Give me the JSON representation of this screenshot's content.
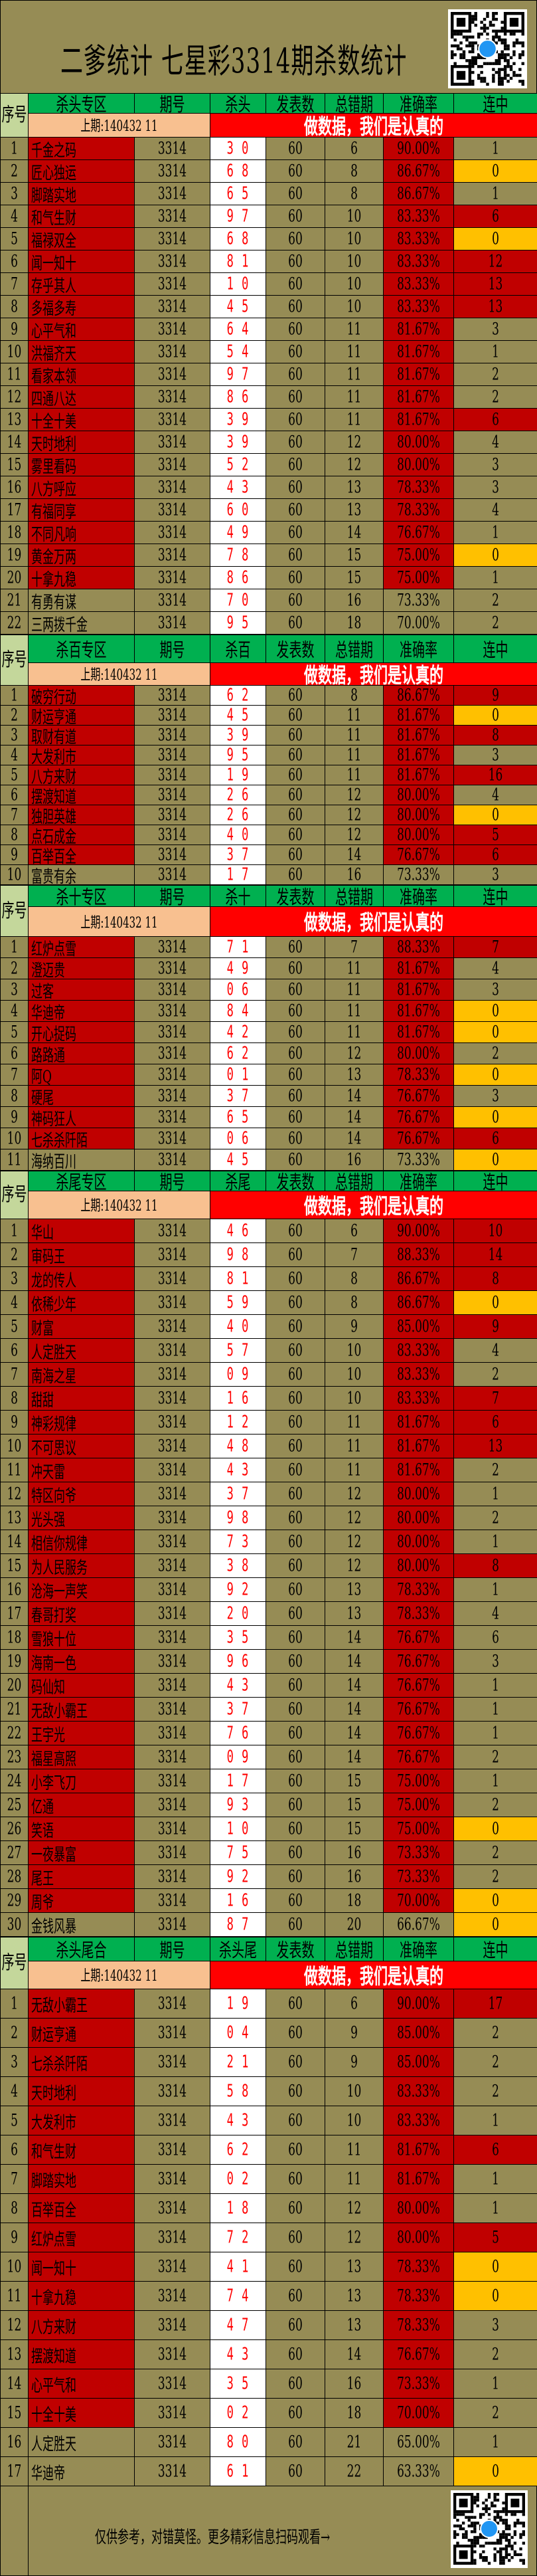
{
  "title": "二爹统计  七星彩3314期杀数统计",
  "common": {
    "seq_label": "序号",
    "period_label": "期号",
    "published_label": "发表数",
    "errors_label": "总错期",
    "accuracy_label": "准确率",
    "streak_label": "连中",
    "last_draw": "上期:140432 11",
    "slogan": "做数据，我们是认真的"
  },
  "colors": {
    "background": "#968c55",
    "header": "#00b050",
    "highlight": "#c00000",
    "streak_zero": "#ffc000",
    "slogan": "#ff0000",
    "last_draw": "#f8c090"
  },
  "row_columns": [
    "seq",
    "name",
    "period",
    "kill",
    "published",
    "errors",
    "accuracy",
    "streak",
    "highlight",
    "streak_color"
  ],
  "sections": [
    {
      "zone": "杀头专区",
      "kill_label": "杀头",
      "rows": [
        [
          "1",
          "千金之码",
          "3314",
          "3 0",
          "60",
          "6",
          "90.00%",
          "1",
          true,
          ""
        ],
        [
          "2",
          "匠心独运",
          "3314",
          "6 8",
          "60",
          "8",
          "86.67%",
          "0",
          true,
          "y"
        ],
        [
          "3",
          "脚踏实地",
          "3314",
          "6 5",
          "60",
          "8",
          "86.67%",
          "1",
          true,
          ""
        ],
        [
          "4",
          "和气生财",
          "3314",
          "9 7",
          "60",
          "10",
          "83.33%",
          "6",
          true,
          "r"
        ],
        [
          "5",
          "福禄双全",
          "3314",
          "6 8",
          "60",
          "10",
          "83.33%",
          "0",
          true,
          "y"
        ],
        [
          "6",
          "闻一知十",
          "3314",
          "8 1",
          "60",
          "10",
          "83.33%",
          "12",
          true,
          "r"
        ],
        [
          "7",
          "存乎其人",
          "3314",
          "1 0",
          "60",
          "10",
          "83.33%",
          "13",
          true,
          "r"
        ],
        [
          "8",
          "多福多寿",
          "3314",
          "4 5",
          "60",
          "10",
          "83.33%",
          "13",
          true,
          "r"
        ],
        [
          "9",
          "心平气和",
          "3314",
          "6 4",
          "60",
          "11",
          "81.67%",
          "3",
          true,
          ""
        ],
        [
          "10",
          "洪福齐天",
          "3314",
          "5 4",
          "60",
          "11",
          "81.67%",
          "1",
          true,
          ""
        ],
        [
          "11",
          "看家本领",
          "3314",
          "9 7",
          "60",
          "11",
          "81.67%",
          "2",
          true,
          ""
        ],
        [
          "12",
          "四通八达",
          "3314",
          "8 6",
          "60",
          "11",
          "81.67%",
          "2",
          true,
          ""
        ],
        [
          "13",
          "十全十美",
          "3314",
          "3 9",
          "60",
          "11",
          "81.67%",
          "6",
          true,
          "r"
        ],
        [
          "14",
          "天时地利",
          "3314",
          "3 9",
          "60",
          "12",
          "80.00%",
          "4",
          true,
          ""
        ],
        [
          "15",
          "雾里看码",
          "3314",
          "5 2",
          "60",
          "12",
          "80.00%",
          "3",
          true,
          ""
        ],
        [
          "16",
          "八方呼应",
          "3314",
          "4 3",
          "60",
          "13",
          "78.33%",
          "3",
          true,
          ""
        ],
        [
          "17",
          "有福同享",
          "3314",
          "6 0",
          "60",
          "13",
          "78.33%",
          "4",
          true,
          ""
        ],
        [
          "18",
          "不同凡响",
          "3314",
          "4 9",
          "60",
          "14",
          "76.67%",
          "1",
          true,
          ""
        ],
        [
          "19",
          "黄金万两",
          "3314",
          "7 8",
          "60",
          "15",
          "75.00%",
          "0",
          true,
          "y"
        ],
        [
          "20",
          "十拿九稳",
          "3314",
          "8 6",
          "60",
          "15",
          "75.00%",
          "1",
          true,
          ""
        ],
        [
          "21",
          "有勇有谋",
          "3314",
          "7 0",
          "60",
          "16",
          "73.33%",
          "2",
          false,
          ""
        ],
        [
          "22",
          "三两拨千金",
          "3314",
          "9 5",
          "60",
          "18",
          "70.00%",
          "2",
          false,
          ""
        ]
      ]
    },
    {
      "zone": "杀百专区",
      "kill_label": "杀百",
      "rows": [
        [
          "1",
          "破穷行动",
          "3314",
          "6 2",
          "60",
          "8",
          "86.67%",
          "9",
          true,
          "r"
        ],
        [
          "2",
          "财运亨通",
          "3314",
          "4 5",
          "60",
          "11",
          "81.67%",
          "0",
          true,
          "y"
        ],
        [
          "3",
          "取财有道",
          "3314",
          "3 9",
          "60",
          "11",
          "81.67%",
          "8",
          true,
          "r"
        ],
        [
          "4",
          "大发利市",
          "3314",
          "9 5",
          "60",
          "11",
          "81.67%",
          "3",
          true,
          ""
        ],
        [
          "5",
          "八方来财",
          "3314",
          "1 9",
          "60",
          "11",
          "81.67%",
          "16",
          true,
          "r"
        ],
        [
          "6",
          "摆渡知道",
          "3314",
          "2 6",
          "60",
          "12",
          "80.00%",
          "4",
          true,
          ""
        ],
        [
          "7",
          "独胆英雄",
          "3314",
          "2 6",
          "60",
          "12",
          "80.00%",
          "0",
          true,
          "y"
        ],
        [
          "8",
          "点石成金",
          "3314",
          "4 0",
          "60",
          "12",
          "80.00%",
          "5",
          true,
          "r"
        ],
        [
          "9",
          "百举百全",
          "3314",
          "3 7",
          "60",
          "14",
          "76.67%",
          "6",
          true,
          "r"
        ],
        [
          "10",
          "富贵有余",
          "3314",
          "1 7",
          "60",
          "16",
          "73.33%",
          "3",
          false,
          ""
        ]
      ]
    },
    {
      "zone": "杀十专区",
      "kill_label": "杀十",
      "rows": [
        [
          "1",
          "红炉点雪",
          "3314",
          "7 1",
          "60",
          "7",
          "88.33%",
          "7",
          true,
          "r"
        ],
        [
          "2",
          "澄迈贵",
          "3314",
          "4 9",
          "60",
          "11",
          "81.67%",
          "4",
          true,
          ""
        ],
        [
          "3",
          "过客",
          "3314",
          "0 6",
          "60",
          "11",
          "81.67%",
          "3",
          true,
          ""
        ],
        [
          "4",
          "华迪帝",
          "3314",
          "8 4",
          "60",
          "11",
          "81.67%",
          "0",
          true,
          "y"
        ],
        [
          "5",
          "开心捉码",
          "3314",
          "4 2",
          "60",
          "11",
          "81.67%",
          "0",
          true,
          "y"
        ],
        [
          "6",
          "路路通",
          "3314",
          "6 2",
          "60",
          "12",
          "80.00%",
          "2",
          true,
          ""
        ],
        [
          "7",
          "阿Q",
          "3314",
          "0 1",
          "60",
          "13",
          "78.33%",
          "0",
          true,
          "y"
        ],
        [
          "8",
          "硬尾",
          "3314",
          "3 7",
          "60",
          "14",
          "76.67%",
          "3",
          true,
          ""
        ],
        [
          "9",
          "神码狂人",
          "3314",
          "6 5",
          "60",
          "14",
          "76.67%",
          "0",
          true,
          "y"
        ],
        [
          "10",
          "七杀杀阡陌",
          "3314",
          "0 6",
          "60",
          "14",
          "76.67%",
          "6",
          true,
          "r"
        ],
        [
          "11",
          "海纳百川",
          "3314",
          "4 5",
          "60",
          "16",
          "73.33%",
          "0",
          false,
          "y"
        ]
      ]
    },
    {
      "zone": "杀尾专区",
      "kill_label": "杀尾",
      "rows": [
        [
          "1",
          "华山",
          "3314",
          "4 6",
          "60",
          "6",
          "90.00%",
          "10",
          true,
          "r"
        ],
        [
          "2",
          "审码王",
          "3314",
          "9 8",
          "60",
          "7",
          "88.33%",
          "14",
          true,
          "r"
        ],
        [
          "3",
          "龙的传人",
          "3314",
          "8 1",
          "60",
          "8",
          "86.67%",
          "8",
          true,
          "r"
        ],
        [
          "4",
          "依稀少年",
          "3314",
          "5 9",
          "60",
          "8",
          "86.67%",
          "0",
          true,
          "y"
        ],
        [
          "5",
          "财富",
          "3314",
          "4 0",
          "60",
          "9",
          "85.00%",
          "9",
          true,
          "r"
        ],
        [
          "6",
          "人定胜天",
          "3314",
          "5 7",
          "60",
          "10",
          "83.33%",
          "4",
          true,
          ""
        ],
        [
          "7",
          "南海之星",
          "3314",
          "0 9",
          "60",
          "10",
          "83.33%",
          "2",
          true,
          ""
        ],
        [
          "8",
          "甜甜",
          "3314",
          "1 6",
          "60",
          "10",
          "83.33%",
          "7",
          true,
          "r"
        ],
        [
          "9",
          "神彩规律",
          "3314",
          "1 2",
          "60",
          "11",
          "81.67%",
          "6",
          true,
          "r"
        ],
        [
          "10",
          "不可思议",
          "3314",
          "4 8",
          "60",
          "11",
          "81.67%",
          "13",
          true,
          "r"
        ],
        [
          "11",
          "冲天雷",
          "3314",
          "4 3",
          "60",
          "11",
          "81.67%",
          "2",
          true,
          ""
        ],
        [
          "12",
          "特区向爷",
          "3314",
          "3 7",
          "60",
          "12",
          "80.00%",
          "1",
          true,
          ""
        ],
        [
          "13",
          "光头强",
          "3314",
          "9 8",
          "60",
          "12",
          "80.00%",
          "2",
          true,
          ""
        ],
        [
          "14",
          "相信你规律",
          "3314",
          "7 3",
          "60",
          "12",
          "80.00%",
          "1",
          true,
          ""
        ],
        [
          "15",
          "为人民服务",
          "3314",
          "3 8",
          "60",
          "12",
          "80.00%",
          "8",
          true,
          "r"
        ],
        [
          "16",
          "沧海一声笑",
          "3314",
          "9 2",
          "60",
          "13",
          "78.33%",
          "1",
          true,
          ""
        ],
        [
          "17",
          "春哥打奖",
          "3314",
          "2 0",
          "60",
          "13",
          "78.33%",
          "4",
          true,
          ""
        ],
        [
          "18",
          "雪狼十位",
          "3314",
          "3 5",
          "60",
          "14",
          "76.67%",
          "6",
          true,
          ""
        ],
        [
          "19",
          "海南一色",
          "3314",
          "9 6",
          "60",
          "14",
          "76.67%",
          "3",
          true,
          ""
        ],
        [
          "20",
          "码仙知",
          "3314",
          "4 3",
          "60",
          "14",
          "76.67%",
          "1",
          true,
          ""
        ],
        [
          "21",
          "无敌小霸王",
          "3314",
          "3 7",
          "60",
          "14",
          "76.67%",
          "1",
          true,
          ""
        ],
        [
          "22",
          "王宇光",
          "3314",
          "7 6",
          "60",
          "14",
          "76.67%",
          "1",
          true,
          ""
        ],
        [
          "23",
          "福星高照",
          "3314",
          "0 9",
          "60",
          "14",
          "76.67%",
          "2",
          true,
          ""
        ],
        [
          "24",
          "小李飞刀",
          "3314",
          "1 7",
          "60",
          "15",
          "75.00%",
          "1",
          true,
          ""
        ],
        [
          "25",
          "亿通",
          "3314",
          "9 3",
          "60",
          "15",
          "75.00%",
          "2",
          true,
          ""
        ],
        [
          "26",
          "笑语",
          "3314",
          "1 0",
          "60",
          "15",
          "75.00%",
          "0",
          true,
          "y"
        ],
        [
          "27",
          "一夜暴富",
          "3314",
          "7 5",
          "60",
          "16",
          "73.33%",
          "2",
          true,
          ""
        ],
        [
          "28",
          "尾王",
          "3314",
          "9 2",
          "60",
          "16",
          "73.33%",
          "2",
          true,
          ""
        ],
        [
          "29",
          "周爷",
          "3314",
          "1 6",
          "60",
          "18",
          "70.00%",
          "0",
          true,
          "y"
        ],
        [
          "30",
          "金钱风暴",
          "3314",
          "8 7",
          "60",
          "20",
          "66.67%",
          "0",
          false,
          "y"
        ]
      ]
    },
    {
      "zone": "杀头尾合",
      "kill_label": "杀头尾",
      "rows": [
        [
          "1",
          "无敌小霸王",
          "3314",
          "1 9",
          "60",
          "6",
          "90.00%",
          "17",
          true,
          "r"
        ],
        [
          "2",
          "财运亨通",
          "3314",
          "0 4",
          "60",
          "9",
          "85.00%",
          "2",
          true,
          ""
        ],
        [
          "3",
          "七杀杀阡陌",
          "3314",
          "2 1",
          "60",
          "9",
          "85.00%",
          "2",
          true,
          ""
        ],
        [
          "4",
          "天时地利",
          "3314",
          "5 8",
          "60",
          "10",
          "83.33%",
          "2",
          true,
          ""
        ],
        [
          "5",
          "大发利市",
          "3314",
          "4 3",
          "60",
          "10",
          "83.33%",
          "1",
          true,
          ""
        ],
        [
          "6",
          "和气生财",
          "3314",
          "6 2",
          "60",
          "11",
          "81.67%",
          "6",
          true,
          "r"
        ],
        [
          "7",
          "脚踏实地",
          "3314",
          "0 2",
          "60",
          "11",
          "81.67%",
          "1",
          true,
          ""
        ],
        [
          "8",
          "百举百全",
          "3314",
          "1 8",
          "60",
          "12",
          "80.00%",
          "1",
          true,
          ""
        ],
        [
          "9",
          "红炉点雪",
          "3314",
          "7 2",
          "60",
          "12",
          "80.00%",
          "5",
          true,
          "r"
        ],
        [
          "10",
          "闻一知十",
          "3314",
          "4 1",
          "60",
          "13",
          "78.33%",
          "0",
          true,
          "y"
        ],
        [
          "11",
          "十拿九稳",
          "3314",
          "7 4",
          "60",
          "13",
          "78.33%",
          "0",
          true,
          "y"
        ],
        [
          "12",
          "八方来财",
          "3314",
          "4 7",
          "60",
          "13",
          "78.33%",
          "3",
          true,
          ""
        ],
        [
          "13",
          "摆渡知道",
          "3314",
          "4 3",
          "60",
          "14",
          "76.67%",
          "2",
          true,
          ""
        ],
        [
          "14",
          "心平气和",
          "3314",
          "3 5",
          "60",
          "16",
          "73.33%",
          "1",
          true,
          ""
        ],
        [
          "15",
          "十全十美",
          "3314",
          "0 2",
          "60",
          "18",
          "70.00%",
          "2",
          true,
          ""
        ],
        [
          "16",
          "人定胜天",
          "3314",
          "8 0",
          "60",
          "21",
          "65.00%",
          "1",
          false,
          ""
        ],
        [
          "17",
          "华迪帝",
          "3314",
          "6 1",
          "60",
          "22",
          "63.33%",
          "0",
          false,
          "y"
        ]
      ]
    }
  ],
  "footer": {
    "note": "仅供参考，对错莫怪。更多精彩信息扫码观看→"
  },
  "qr_icon": "qr-code"
}
